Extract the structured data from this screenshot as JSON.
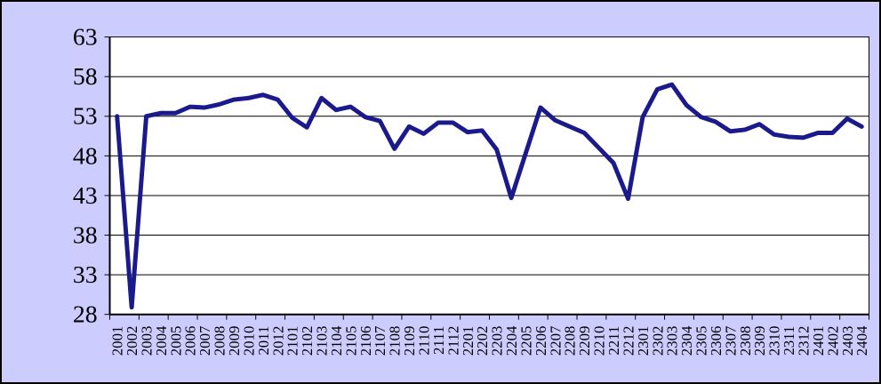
{
  "chart_data": {
    "type": "line",
    "title": "",
    "xlabel": "",
    "ylabel": "",
    "legend": "none",
    "grid": "horizontal",
    "ylim": [
      28,
      63
    ],
    "yticks": [
      63,
      58,
      53,
      48,
      43,
      38,
      33,
      28
    ],
    "categories": [
      "2001",
      "2002",
      "2003",
      "2004",
      "2005",
      "2006",
      "2007",
      "2008",
      "2009",
      "2010",
      "2011",
      "2012",
      "2101",
      "2102",
      "2103",
      "2104",
      "2105",
      "2106",
      "2107",
      "2108",
      "2109",
      "2110",
      "2111",
      "2112",
      "2201",
      "2202",
      "2203",
      "2204",
      "2205",
      "2206",
      "2207",
      "2208",
      "2209",
      "2210",
      "2211",
      "2212",
      "2301",
      "2302",
      "2303",
      "2304",
      "2305",
      "2306",
      "2307",
      "2308",
      "2309",
      "2310",
      "2311",
      "2312",
      "2401",
      "2402",
      "2403",
      "2404"
    ],
    "values": [
      53.0,
      28.9,
      53.0,
      53.4,
      53.4,
      54.2,
      54.1,
      54.5,
      55.1,
      55.3,
      55.7,
      55.1,
      52.8,
      51.6,
      55.3,
      53.8,
      54.2,
      52.9,
      52.4,
      48.9,
      51.7,
      50.8,
      52.2,
      52.2,
      51.0,
      51.2,
      48.8,
      42.7,
      48.4,
      54.1,
      52.5,
      51.7,
      50.9,
      49.0,
      47.1,
      42.6,
      52.9,
      56.4,
      57.0,
      54.4,
      52.9,
      52.3,
      51.1,
      51.3,
      52.0,
      50.7,
      50.4,
      50.3,
      50.9,
      50.9,
      52.7,
      51.7
    ],
    "colors": {
      "background": "#CCCCFF",
      "plot_background": "#FFFFFF",
      "line": "#1A1A8C",
      "axis": "#000000"
    }
  }
}
